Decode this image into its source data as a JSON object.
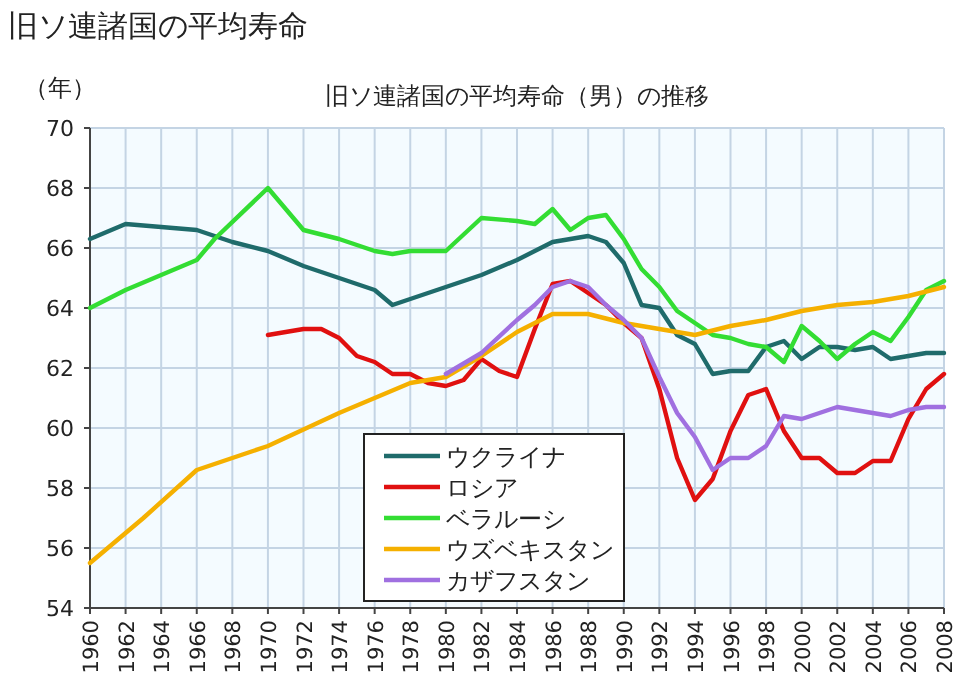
{
  "chart_data": {
    "type": "line",
    "title": "旧ソ連諸国の平均寿命",
    "subtitle": "旧ソ連諸国の平均寿命（男）の推移",
    "ylabel": "（年）",
    "xlim": [
      1960,
      2008
    ],
    "xticks": [
      1960,
      1962,
      1964,
      1966,
      1968,
      1970,
      1972,
      1974,
      1976,
      1978,
      1980,
      1982,
      1984,
      1986,
      1988,
      1990,
      1992,
      1994,
      1996,
      1998,
      2000,
      2002,
      2004,
      2006,
      2008
    ],
    "ylim": [
      54,
      70
    ],
    "yticks": [
      54,
      56,
      58,
      60,
      62,
      64,
      66,
      68,
      70
    ],
    "grid": true,
    "legend": "bottom",
    "marker": "none",
    "line_style": "solid",
    "series": [
      {
        "name": "ウクライナ",
        "color": "#1f6b6b",
        "x": [
          1960,
          1962,
          1964,
          1966,
          1968,
          1970,
          1972,
          1974,
          1976,
          1977,
          1980,
          1982,
          1984,
          1986,
          1988,
          1989,
          1990,
          1991,
          1992,
          1993,
          1994,
          1995,
          1996,
          1997,
          1998,
          1999,
          2000,
          2001,
          2002,
          2003,
          2004,
          2005,
          2006,
          2007,
          2008
        ],
        "values": [
          66.3,
          66.8,
          66.7,
          66.6,
          66.2,
          65.9,
          65.4,
          65.0,
          64.6,
          64.1,
          64.7,
          65.1,
          65.6,
          66.2,
          66.4,
          66.2,
          65.5,
          64.1,
          64.0,
          63.1,
          62.8,
          61.8,
          61.9,
          61.9,
          62.7,
          62.9,
          62.3,
          62.7,
          62.7,
          62.6,
          62.7,
          62.3,
          62.4,
          62.5,
          62.5
        ]
      },
      {
        "name": "ロシア",
        "color": "#e01010",
        "x": [
          1970,
          1971,
          1972,
          1973,
          1974,
          1975,
          1976,
          1977,
          1978,
          1979,
          1980,
          1981,
          1982,
          1983,
          1984,
          1985,
          1986,
          1987,
          1988,
          1989,
          1990,
          1991,
          1992,
          1993,
          1994,
          1995,
          1996,
          1997,
          1998,
          1999,
          2000,
          2001,
          2002,
          2003,
          2004,
          2005,
          2006,
          2007,
          2008
        ],
        "values": [
          63.1,
          63.2,
          63.3,
          63.3,
          63.0,
          62.4,
          62.2,
          61.8,
          61.8,
          61.5,
          61.4,
          61.6,
          62.3,
          61.9,
          61.7,
          63.3,
          64.8,
          64.9,
          64.5,
          64.1,
          63.5,
          63.0,
          61.3,
          59.0,
          57.6,
          58.3,
          59.9,
          61.1,
          61.3,
          59.9,
          59.0,
          59.0,
          58.5,
          58.5,
          58.9,
          58.9,
          60.3,
          61.3,
          61.8
        ]
      },
      {
        "name": "ベラルーシ",
        "color": "#33dd33",
        "x": [
          1960,
          1962,
          1964,
          1966,
          1967,
          1970,
          1972,
          1974,
          1976,
          1977,
          1978,
          1980,
          1982,
          1984,
          1985,
          1986,
          1987,
          1988,
          1989,
          1990,
          1991,
          1992,
          1993,
          1994,
          1995,
          1996,
          1997,
          1998,
          1999,
          2000,
          2001,
          2002,
          2003,
          2004,
          2005,
          2006,
          2007,
          2008
        ],
        "values": [
          64.0,
          64.6,
          65.1,
          65.6,
          66.3,
          68.0,
          66.6,
          66.3,
          65.9,
          65.8,
          65.9,
          65.9,
          67.0,
          66.9,
          66.8,
          67.3,
          66.6,
          67.0,
          67.1,
          66.3,
          65.3,
          64.7,
          63.9,
          63.5,
          63.1,
          63.0,
          62.8,
          62.7,
          62.2,
          63.4,
          62.9,
          62.3,
          62.8,
          63.2,
          62.9,
          63.7,
          64.6,
          64.9
        ]
      },
      {
        "name": "ウズベキスタン",
        "color": "#f5b000",
        "x": [
          1960,
          1963,
          1966,
          1970,
          1974,
          1978,
          1980,
          1982,
          1984,
          1986,
          1988,
          1990,
          1992,
          1994,
          1996,
          1998,
          2000,
          2002,
          2004,
          2006,
          2008
        ],
        "values": [
          55.5,
          57.0,
          58.6,
          59.4,
          60.5,
          61.5,
          61.7,
          62.4,
          63.2,
          63.8,
          63.8,
          63.5,
          63.3,
          63.1,
          63.4,
          63.6,
          63.9,
          64.1,
          64.2,
          64.4,
          64.7
        ]
      },
      {
        "name": "カザフスタン",
        "color": "#a070e0",
        "x": [
          1980,
          1982,
          1984,
          1985,
          1986,
          1987,
          1988,
          1989,
          1990,
          1991,
          1992,
          1993,
          1994,
          1995,
          1996,
          1997,
          1998,
          1999,
          2000,
          2001,
          2002,
          2003,
          2004,
          2005,
          2006,
          2007,
          2008
        ],
        "values": [
          61.8,
          62.5,
          63.6,
          64.1,
          64.7,
          64.9,
          64.7,
          64.1,
          63.6,
          63.0,
          61.7,
          60.5,
          59.7,
          58.6,
          59.0,
          59.0,
          59.4,
          60.4,
          60.3,
          60.5,
          60.7,
          60.6,
          60.5,
          60.4,
          60.6,
          60.7,
          60.7
        ]
      }
    ]
  }
}
